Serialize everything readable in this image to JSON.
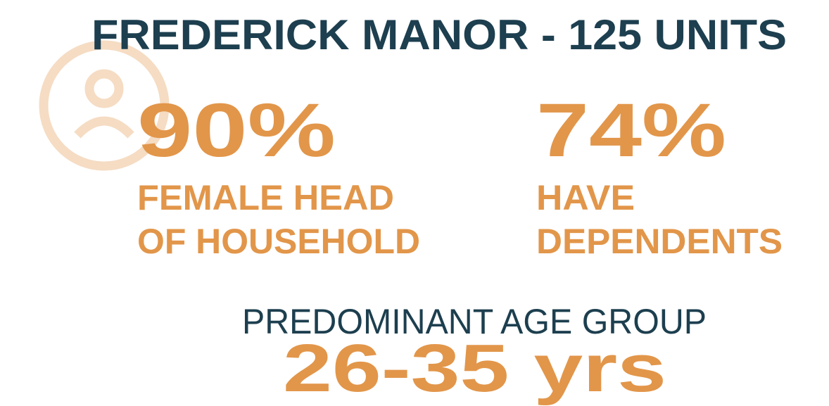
{
  "title": "FREDERICK MANOR - 125 UNITS",
  "stats": [
    {
      "value": "90%",
      "lines": [
        "FEMALE HEAD",
        "OF HOUSEHOLD"
      ]
    },
    {
      "value": "74%",
      "lines": [
        "HAVE",
        "DEPENDENTS"
      ]
    }
  ],
  "age": {
    "label": "PREDOMINANT AGE GROUP",
    "value": "26-35 yrs"
  }
}
